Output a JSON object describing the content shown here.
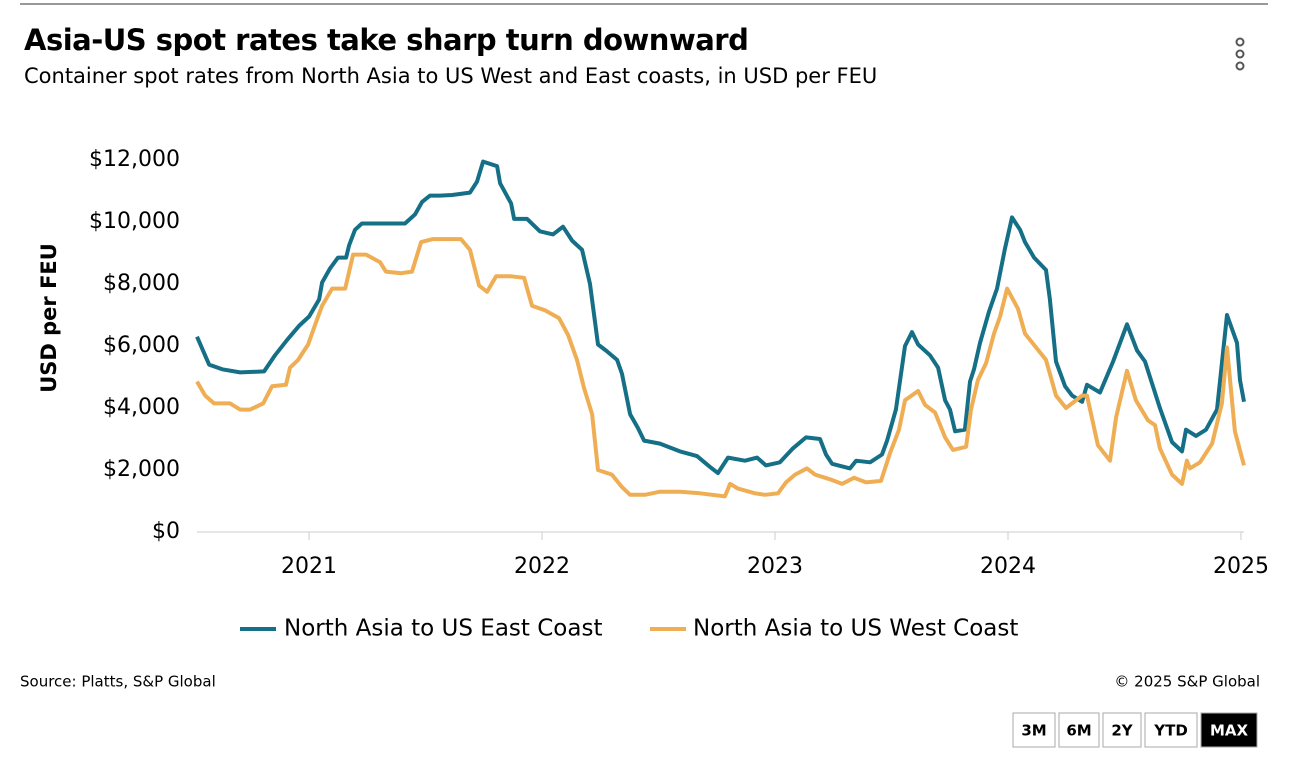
{
  "header": {
    "title": "Asia-US spot rates take sharp turn downward",
    "subtitle": "Container spot rates from North Asia to US West and East coasts, in USD per FEU"
  },
  "chart_data": {
    "type": "line",
    "ylabel": "USD per FEU",
    "xlim": [
      2020.519,
      2025.013
    ],
    "xticks": [
      2021,
      2022,
      2023,
      2024,
      2025
    ],
    "ylim": [
      0,
      12000
    ],
    "yticks": [
      {
        "value": 0,
        "label": "$0"
      },
      {
        "value": 2000,
        "label": "$2,000"
      },
      {
        "value": 4000,
        "label": "$4,000"
      },
      {
        "value": 6000,
        "label": "$6,000"
      },
      {
        "value": 8000,
        "label": "$8,000"
      },
      {
        "value": 10000,
        "label": "$10,000"
      },
      {
        "value": 12000,
        "label": "$12,000"
      }
    ],
    "grid": false,
    "legend": "bottom",
    "series": [
      {
        "name": "North Asia to US East Coast",
        "color": "#156f86",
        "x": [
          2020.519,
          2020.571,
          2020.627,
          2020.704,
          2020.807,
          2020.854,
          2020.906,
          2020.957,
          2021.0,
          2021.043,
          2021.056,
          2021.09,
          2021.124,
          2021.159,
          2021.172,
          2021.197,
          2021.227,
          2021.262,
          2021.369,
          2021.412,
          2021.455,
          2021.485,
          2021.519,
          2021.562,
          2021.614,
          2021.691,
          2021.721,
          2021.747,
          2021.807,
          2021.82,
          2021.867,
          2021.88,
          2021.936,
          2021.991,
          2022.047,
          2022.09,
          2022.129,
          2022.172,
          2022.206,
          2022.24,
          2022.275,
          2022.322,
          2022.343,
          2022.378,
          2022.412,
          2022.438,
          2022.506,
          2022.592,
          2022.665,
          2022.721,
          2022.755,
          2022.798,
          2022.871,
          2022.923,
          2022.961,
          2023.021,
          2023.077,
          2023.133,
          2023.193,
          2023.219,
          2023.245,
          2023.322,
          2023.348,
          2023.408,
          2023.459,
          2023.481,
          2023.519,
          2023.558,
          2023.588,
          2023.614,
          2023.665,
          2023.7,
          2023.73,
          2023.751,
          2023.773,
          2023.815,
          2023.837,
          2023.854,
          2023.88,
          2023.918,
          2023.953,
          2023.987,
          2024.017,
          2024.052,
          2024.073,
          2024.112,
          2024.163,
          2024.18,
          2024.206,
          2024.245,
          2024.275,
          2024.318,
          2024.339,
          2024.395,
          2024.451,
          2024.511,
          2024.554,
          2024.588,
          2024.652,
          2024.704,
          2024.747,
          2024.764,
          2024.807,
          2024.85,
          2024.897,
          2024.94,
          2024.983,
          2024.996,
          2025.013
        ],
        "values": [
          6300,
          5400,
          5250,
          5150,
          5180,
          5700,
          6200,
          6650,
          6950,
          7500,
          8050,
          8500,
          8850,
          8850,
          9250,
          9750,
          9950,
          9950,
          9950,
          9950,
          10250,
          10650,
          10850,
          10850,
          10870,
          10950,
          11300,
          11950,
          11800,
          11250,
          10600,
          10100,
          10100,
          9700,
          9600,
          9850,
          9400,
          9100,
          8000,
          6050,
          5850,
          5550,
          5100,
          3800,
          3350,
          2950,
          2850,
          2600,
          2450,
          2100,
          1900,
          2400,
          2300,
          2400,
          2150,
          2250,
          2700,
          3050,
          3000,
          2500,
          2200,
          2050,
          2300,
          2250,
          2500,
          2950,
          3950,
          6000,
          6450,
          6050,
          5700,
          5300,
          4250,
          3950,
          3250,
          3300,
          4850,
          5250,
          6100,
          7100,
          7850,
          9150,
          10150,
          9750,
          9350,
          8850,
          8450,
          7500,
          5500,
          4700,
          4400,
          4200,
          4750,
          4500,
          5500,
          6700,
          5850,
          5500,
          4000,
          2900,
          2600,
          3300,
          3100,
          3300,
          3950,
          7000,
          6100,
          4900,
          4200
        ]
      },
      {
        "name": "North Asia to US West Coast",
        "color": "#efad54",
        "x": [
          2020.519,
          2020.554,
          2020.592,
          2020.661,
          2020.704,
          2020.747,
          2020.803,
          2020.841,
          2020.901,
          2020.918,
          2020.953,
          2020.996,
          2021.034,
          2021.056,
          2021.099,
          2021.155,
          2021.189,
          2021.245,
          2021.305,
          2021.33,
          2021.395,
          2021.442,
          2021.481,
          2021.532,
          2021.652,
          2021.691,
          2021.73,
          2021.764,
          2021.803,
          2021.867,
          2021.923,
          2021.957,
          2022.013,
          2022.073,
          2022.112,
          2022.15,
          2022.18,
          2022.215,
          2022.24,
          2022.3,
          2022.343,
          2022.378,
          2022.442,
          2022.506,
          2022.592,
          2022.678,
          2022.785,
          2022.807,
          2022.841,
          2022.914,
          2022.957,
          2023.013,
          2023.047,
          2023.086,
          2023.137,
          2023.172,
          2023.236,
          2023.288,
          2023.339,
          2023.391,
          2023.455,
          2023.494,
          2023.532,
          2023.558,
          2023.614,
          2023.644,
          2023.687,
          2023.73,
          2023.764,
          2023.82,
          2023.841,
          2023.871,
          2023.906,
          2023.94,
          2023.966,
          2023.996,
          2024.043,
          2024.073,
          2024.163,
          2024.206,
          2024.249,
          2024.318,
          2024.339,
          2024.386,
          2024.438,
          2024.464,
          2024.511,
          2024.549,
          2024.601,
          2024.631,
          2024.652,
          2024.704,
          2024.747,
          2024.768,
          2024.781,
          2024.824,
          2024.876,
          2024.918,
          2024.94,
          2024.974,
          2025.013
        ],
        "values": [
          4850,
          4400,
          4150,
          4150,
          3950,
          3950,
          4150,
          4700,
          4750,
          5300,
          5550,
          6050,
          6850,
          7300,
          7850,
          7850,
          8950,
          8950,
          8700,
          8400,
          8350,
          8400,
          9350,
          9450,
          9450,
          9100,
          7950,
          7750,
          8250,
          8250,
          8200,
          7300,
          7150,
          6900,
          6350,
          5550,
          4650,
          3800,
          2000,
          1850,
          1450,
          1200,
          1200,
          1300,
          1300,
          1250,
          1150,
          1550,
          1400,
          1250,
          1200,
          1250,
          1600,
          1850,
          2050,
          1850,
          1700,
          1550,
          1750,
          1600,
          1650,
          2550,
          3300,
          4250,
          4550,
          4100,
          3850,
          3050,
          2650,
          2750,
          3950,
          4900,
          5450,
          6400,
          6950,
          7850,
          7200,
          6400,
          5550,
          4400,
          4000,
          4400,
          4400,
          2800,
          2300,
          3700,
          5200,
          4250,
          3600,
          3450,
          2700,
          1850,
          1550,
          2300,
          2050,
          2250,
          2850,
          4150,
          5950,
          3250,
          2150
        ]
      }
    ]
  },
  "footer": {
    "source": "Source: Platts, S&P Global",
    "copyright": "© 2025 S&P Global"
  },
  "buttons": [
    "3M",
    "6M",
    "2Y",
    "YTD",
    "MAX"
  ],
  "selected": "MAX"
}
